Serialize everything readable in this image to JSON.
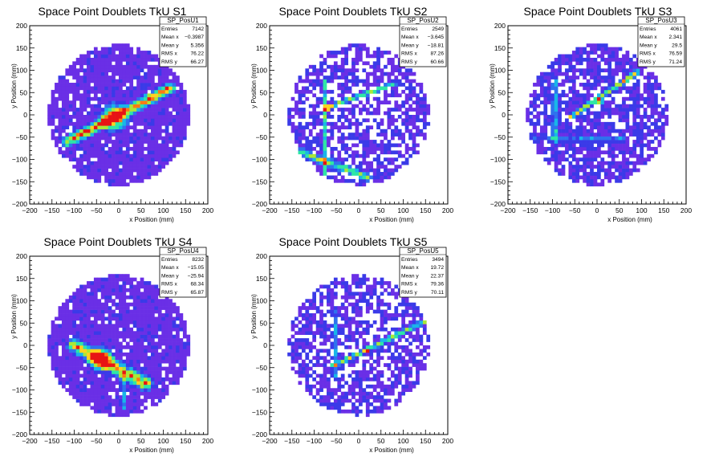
{
  "colors": {
    "frame": "#000000",
    "background": "#ffffff",
    "palette": [
      "#6a2fe6",
      "#3a3ae8",
      "#2f72ee",
      "#18b6e8",
      "#2ee6a6",
      "#a8e838",
      "#ffd21e",
      "#ff7a12",
      "#e81414"
    ]
  },
  "chart_data": [
    {
      "type": "heatmap",
      "title": "Space Point Doublets TkU S1",
      "xlabel": "x Position (mm)",
      "ylabel": "y Position (mm)",
      "xlim": [
        -200,
        200
      ],
      "ylim": [
        -200,
        200
      ],
      "xticks": [
        "−200",
        "−150",
        "−100",
        "−50",
        "0",
        "50",
        "100",
        "150",
        "200"
      ],
      "yticks": [
        "−200",
        "−150",
        "−100",
        "−50",
        "0",
        "50",
        "100",
        "150",
        "200"
      ],
      "grid": false,
      "stats": {
        "name": "SP_PosU1",
        "rows": [
          {
            "label": "Entries",
            "value": "7142"
          },
          {
            "label": "Mean x",
            "value": "−0.3987"
          },
          {
            "label": "Mean y",
            "value": "5.356"
          },
          {
            "label": "RMS x",
            "value": "76.22"
          },
          {
            "label": "RMS y",
            "value": "66.27"
          }
        ]
      },
      "features": {
        "fill": 0.9,
        "base_level": 1.0,
        "lines": [
          {
            "x1": -115,
            "y1": -60,
            "x2": 115,
            "y2": 60,
            "width": 16,
            "peak": 8
          }
        ],
        "hotspots": [
          {
            "x": -10,
            "y": -5,
            "r": 40,
            "peak": 8
          }
        ]
      }
    },
    {
      "type": "heatmap",
      "title": "Space Point Doublets TkU S2",
      "xlabel": "x Position (mm)",
      "ylabel": "y Position (mm)",
      "xlim": [
        -200,
        200
      ],
      "ylim": [
        -200,
        200
      ],
      "xticks": [
        "−200",
        "−150",
        "−100",
        "−50",
        "0",
        "50",
        "100",
        "150",
        "200"
      ],
      "yticks": [
        "−200",
        "−150",
        "−100",
        "−50",
        "0",
        "50",
        "100",
        "150",
        "200"
      ],
      "grid": false,
      "stats": {
        "name": "SP_PosU2",
        "rows": [
          {
            "label": "Entries",
            "value": "2549"
          },
          {
            "label": "Mean x",
            "value": "−3.645"
          },
          {
            "label": "Mean y",
            "value": "−18.81"
          },
          {
            "label": "RMS x",
            "value": "87.26"
          },
          {
            "label": "RMS y",
            "value": "60.66"
          }
        ]
      },
      "features": {
        "fill": 0.6,
        "base_level": 1.3,
        "lines": [
          {
            "x1": -75,
            "y1": 15,
            "x2": 80,
            "y2": 70,
            "width": 7,
            "peak": 5
          },
          {
            "x1": -75,
            "y1": 80,
            "x2": -75,
            "y2": -140,
            "width": 7,
            "peak": 4
          },
          {
            "x1": -140,
            "y1": -80,
            "x2": 20,
            "y2": -140,
            "width": 12,
            "peak": 5
          }
        ],
        "hotspots": [
          {
            "x": -70,
            "y": 15,
            "r": 8,
            "peak": 8
          }
        ]
      }
    },
    {
      "type": "heatmap",
      "title": "Space Point Doublets TkU S3",
      "xlabel": "x Position (mm)",
      "ylabel": "y Position (mm)",
      "xlim": [
        -200,
        200
      ],
      "ylim": [
        -200,
        200
      ],
      "xticks": [
        "−200",
        "−150",
        "−100",
        "−50",
        "0",
        "50",
        "100",
        "150",
        "200"
      ],
      "yticks": [
        "−200",
        "−150",
        "−100",
        "−50",
        "0",
        "50",
        "100",
        "150",
        "200"
      ],
      "grid": false,
      "stats": {
        "name": "SP_PosU3",
        "rows": [
          {
            "label": "Entries",
            "value": "4061"
          },
          {
            "label": "Mean x",
            "value": "2.341"
          },
          {
            "label": "Mean y",
            "value": "29.5"
          },
          {
            "label": "RMS x",
            "value": "76.59"
          },
          {
            "label": "RMS y",
            "value": "71.24"
          }
        ]
      },
      "features": {
        "fill": 0.75,
        "base_level": 1.4,
        "lines": [
          {
            "x1": -95,
            "y1": 75,
            "x2": -95,
            "y2": -60,
            "width": 7,
            "peak": 4
          },
          {
            "x1": -60,
            "y1": -5,
            "x2": 90,
            "y2": 95,
            "width": 8,
            "peak": 6
          },
          {
            "x1": -140,
            "y1": -55,
            "x2": 60,
            "y2": -55,
            "width": 6,
            "peak": 3
          }
        ],
        "hotspots": [
          {
            "x": 5,
            "y": 30,
            "r": 10,
            "peak": 7
          }
        ]
      }
    },
    {
      "type": "heatmap",
      "title": "Space Point Doublets TkU S4",
      "xlabel": "x Position (mm)",
      "ylabel": "y Position (mm)",
      "xlim": [
        -200,
        200
      ],
      "ylim": [
        -200,
        200
      ],
      "xticks": [
        "−200",
        "−150",
        "−100",
        "−50",
        "0",
        "50",
        "100",
        "150",
        "200"
      ],
      "yticks": [
        "−200",
        "−150",
        "−100",
        "−50",
        "0",
        "50",
        "100",
        "150",
        "200"
      ],
      "grid": false,
      "stats": {
        "name": "SP_PosU4",
        "rows": [
          {
            "label": "Entries",
            "value": "8232"
          },
          {
            "label": "Mean x",
            "value": "−15.05"
          },
          {
            "label": "Mean y",
            "value": "−25.94"
          },
          {
            "label": "RMS x",
            "value": "68.34"
          },
          {
            "label": "RMS y",
            "value": "65.87"
          }
        ]
      },
      "features": {
        "fill": 0.9,
        "base_level": 1.0,
        "lines": [
          {
            "x1": -100,
            "y1": 0,
            "x2": 60,
            "y2": -85,
            "width": 22,
            "peak": 7
          },
          {
            "x1": 10,
            "y1": -60,
            "x2": 10,
            "y2": -140,
            "width": 8,
            "peak": 3
          }
        ],
        "hotspots": [
          {
            "x": -40,
            "y": -30,
            "r": 35,
            "peak": 8
          }
        ]
      }
    },
    {
      "type": "heatmap",
      "title": "Space Point Doublets TkU S5",
      "xlabel": "x Position (mm)",
      "ylabel": "y Position (mm)",
      "xlim": [
        -200,
        200
      ],
      "ylim": [
        -200,
        200
      ],
      "xticks": [
        "−200",
        "−150",
        "−100",
        "−50",
        "0",
        "50",
        "100",
        "150",
        "200"
      ],
      "yticks": [
        "−200",
        "−150",
        "−100",
        "−50",
        "0",
        "50",
        "100",
        "150",
        "200"
      ],
      "grid": false,
      "stats": {
        "name": "SP_PosU5",
        "rows": [
          {
            "label": "Entries",
            "value": "3494"
          },
          {
            "label": "Mean x",
            "value": "19.72"
          },
          {
            "label": "Mean y",
            "value": "22.37"
          },
          {
            "label": "RMS x",
            "value": "79.36"
          },
          {
            "label": "RMS y",
            "value": "70.11"
          }
        ]
      },
      "features": {
        "fill": 0.65,
        "base_level": 1.3,
        "lines": [
          {
            "x1": -55,
            "y1": 80,
            "x2": -55,
            "y2": -70,
            "width": 6,
            "peak": 4
          },
          {
            "x1": -55,
            "y1": -45,
            "x2": 160,
            "y2": 60,
            "width": 8,
            "peak": 5
          }
        ],
        "hotspots": [
          {
            "x": 20,
            "y": -10,
            "r": 8,
            "peak": 8
          }
        ]
      }
    }
  ]
}
